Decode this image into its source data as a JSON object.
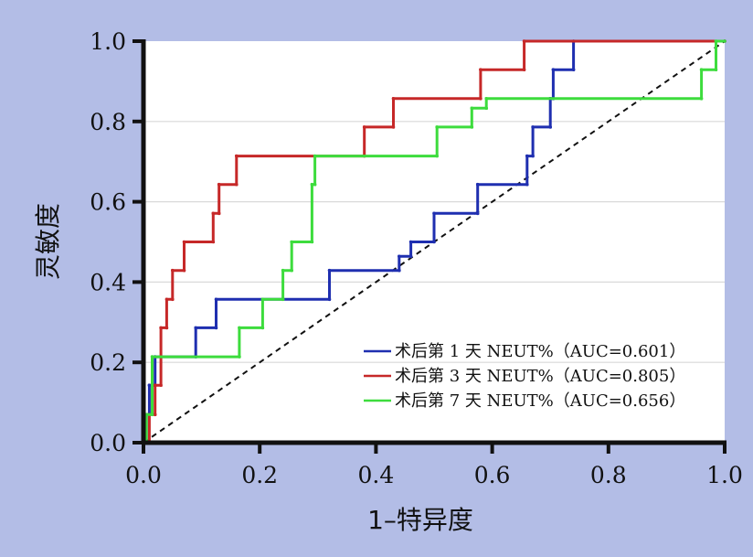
{
  "chart_data": {
    "type": "line",
    "title": "",
    "xlabel": "1–特异度",
    "ylabel": "灵敏度",
    "xlim": [
      0,
      1
    ],
    "ylim": [
      0,
      1
    ],
    "xticks": [
      "0.0",
      "0.2",
      "0.4",
      "0.6",
      "0.8",
      "1.0"
    ],
    "yticks": [
      "0.0",
      "0.2",
      "0.4",
      "0.6",
      "0.8",
      "1.0"
    ],
    "grid": "horizontal",
    "legend": "bottom-right",
    "reference_line": {
      "x": [
        0,
        1
      ],
      "y": [
        0,
        1
      ],
      "style": "dashed",
      "color": "#111111"
    },
    "series": [
      {
        "name": "术后第 1 天 NEUT%（AUC=0.601）",
        "color": "#1f2fb0",
        "x": [
          0,
          0.005,
          0.005,
          0.01,
          0.01,
          0.02,
          0.02,
          0.09,
          0.09,
          0.125,
          0.125,
          0.32,
          0.32,
          0.44,
          0.44,
          0.46,
          0.46,
          0.5,
          0.5,
          0.575,
          0.575,
          0.66,
          0.66,
          0.67,
          0.67,
          0.7,
          0.7,
          0.705,
          0.705,
          0.74,
          0.74,
          1.0
        ],
        "y": [
          0,
          0,
          0.07,
          0.07,
          0.143,
          0.143,
          0.214,
          0.214,
          0.286,
          0.286,
          0.357,
          0.357,
          0.429,
          0.429,
          0.464,
          0.464,
          0.5,
          0.5,
          0.571,
          0.571,
          0.643,
          0.643,
          0.714,
          0.714,
          0.786,
          0.786,
          0.857,
          0.857,
          0.929,
          0.929,
          1.0,
          1.0
        ]
      },
      {
        "name": "术后第 3 天 NEUT%（AUC=0.805）",
        "color": "#c62828",
        "x": [
          0,
          0.01,
          0.01,
          0.02,
          0.02,
          0.03,
          0.03,
          0.04,
          0.04,
          0.05,
          0.05,
          0.07,
          0.07,
          0.12,
          0.12,
          0.13,
          0.13,
          0.16,
          0.16,
          0.38,
          0.38,
          0.43,
          0.43,
          0.58,
          0.58,
          0.655,
          0.655,
          1.0
        ],
        "y": [
          0,
          0,
          0.07,
          0.07,
          0.143,
          0.143,
          0.286,
          0.286,
          0.357,
          0.357,
          0.429,
          0.429,
          0.5,
          0.5,
          0.571,
          0.571,
          0.643,
          0.643,
          0.714,
          0.714,
          0.786,
          0.786,
          0.857,
          0.857,
          0.929,
          0.929,
          1.0,
          1.0
        ]
      },
      {
        "name": "术后第 7 天 NEUT%（AUC=0.656）",
        "color": "#3ddc3d",
        "x": [
          0,
          0.005,
          0.005,
          0.015,
          0.015,
          0.165,
          0.165,
          0.205,
          0.205,
          0.24,
          0.24,
          0.255,
          0.255,
          0.29,
          0.29,
          0.295,
          0.295,
          0.505,
          0.505,
          0.565,
          0.565,
          0.59,
          0.59,
          0.96,
          0.96,
          0.985,
          0.985,
          1.0
        ],
        "y": [
          0,
          0,
          0.07,
          0.07,
          0.214,
          0.214,
          0.286,
          0.286,
          0.357,
          0.357,
          0.429,
          0.429,
          0.5,
          0.5,
          0.643,
          0.643,
          0.714,
          0.714,
          0.786,
          0.786,
          0.833,
          0.833,
          0.857,
          0.857,
          0.929,
          0.929,
          1.0,
          1.0
        ]
      }
    ]
  }
}
